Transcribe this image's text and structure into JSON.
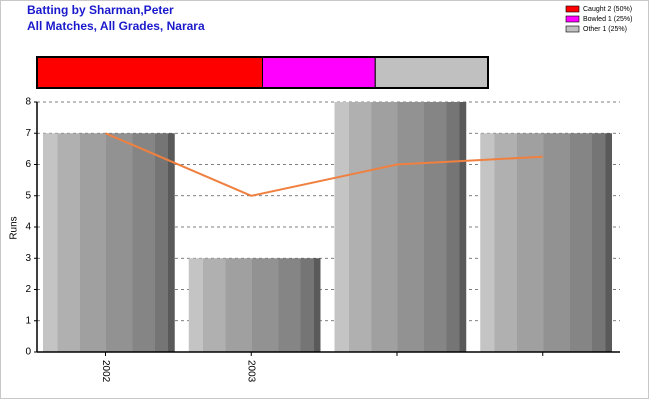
{
  "chart_data": [
    {
      "type": "stacked-bar",
      "series": [
        {
          "name": "Caught 2 (50%)",
          "color": "#ff0000",
          "values": [
            50
          ]
        },
        {
          "name": "Bowled 1 (25%)",
          "color": "#ff00ff",
          "values": [
            25
          ]
        },
        {
          "name": "Other 1 (25%)",
          "color": "#c0c0c0",
          "values": [
            25
          ]
        }
      ],
      "xlim": [
        0,
        100
      ]
    },
    {
      "type": "bar",
      "title": "Batting by Sharman,Peter",
      "subtitle": "All Matches, All Grades, Narara",
      "y_label": "Runs",
      "categories": [
        "2002",
        "2003",
        null,
        null
      ],
      "series": [
        {
          "type": "bar",
          "values": [
            7,
            3,
            8,
            7
          ]
        },
        {
          "type": "line",
          "color": "#f08040",
          "values": [
            7,
            5,
            6,
            6.25
          ]
        }
      ],
      "ylim": [
        0,
        8
      ],
      "yticks": [
        0,
        1,
        2,
        3,
        4,
        5,
        6,
        7,
        8
      ],
      "grid": true
    }
  ]
}
